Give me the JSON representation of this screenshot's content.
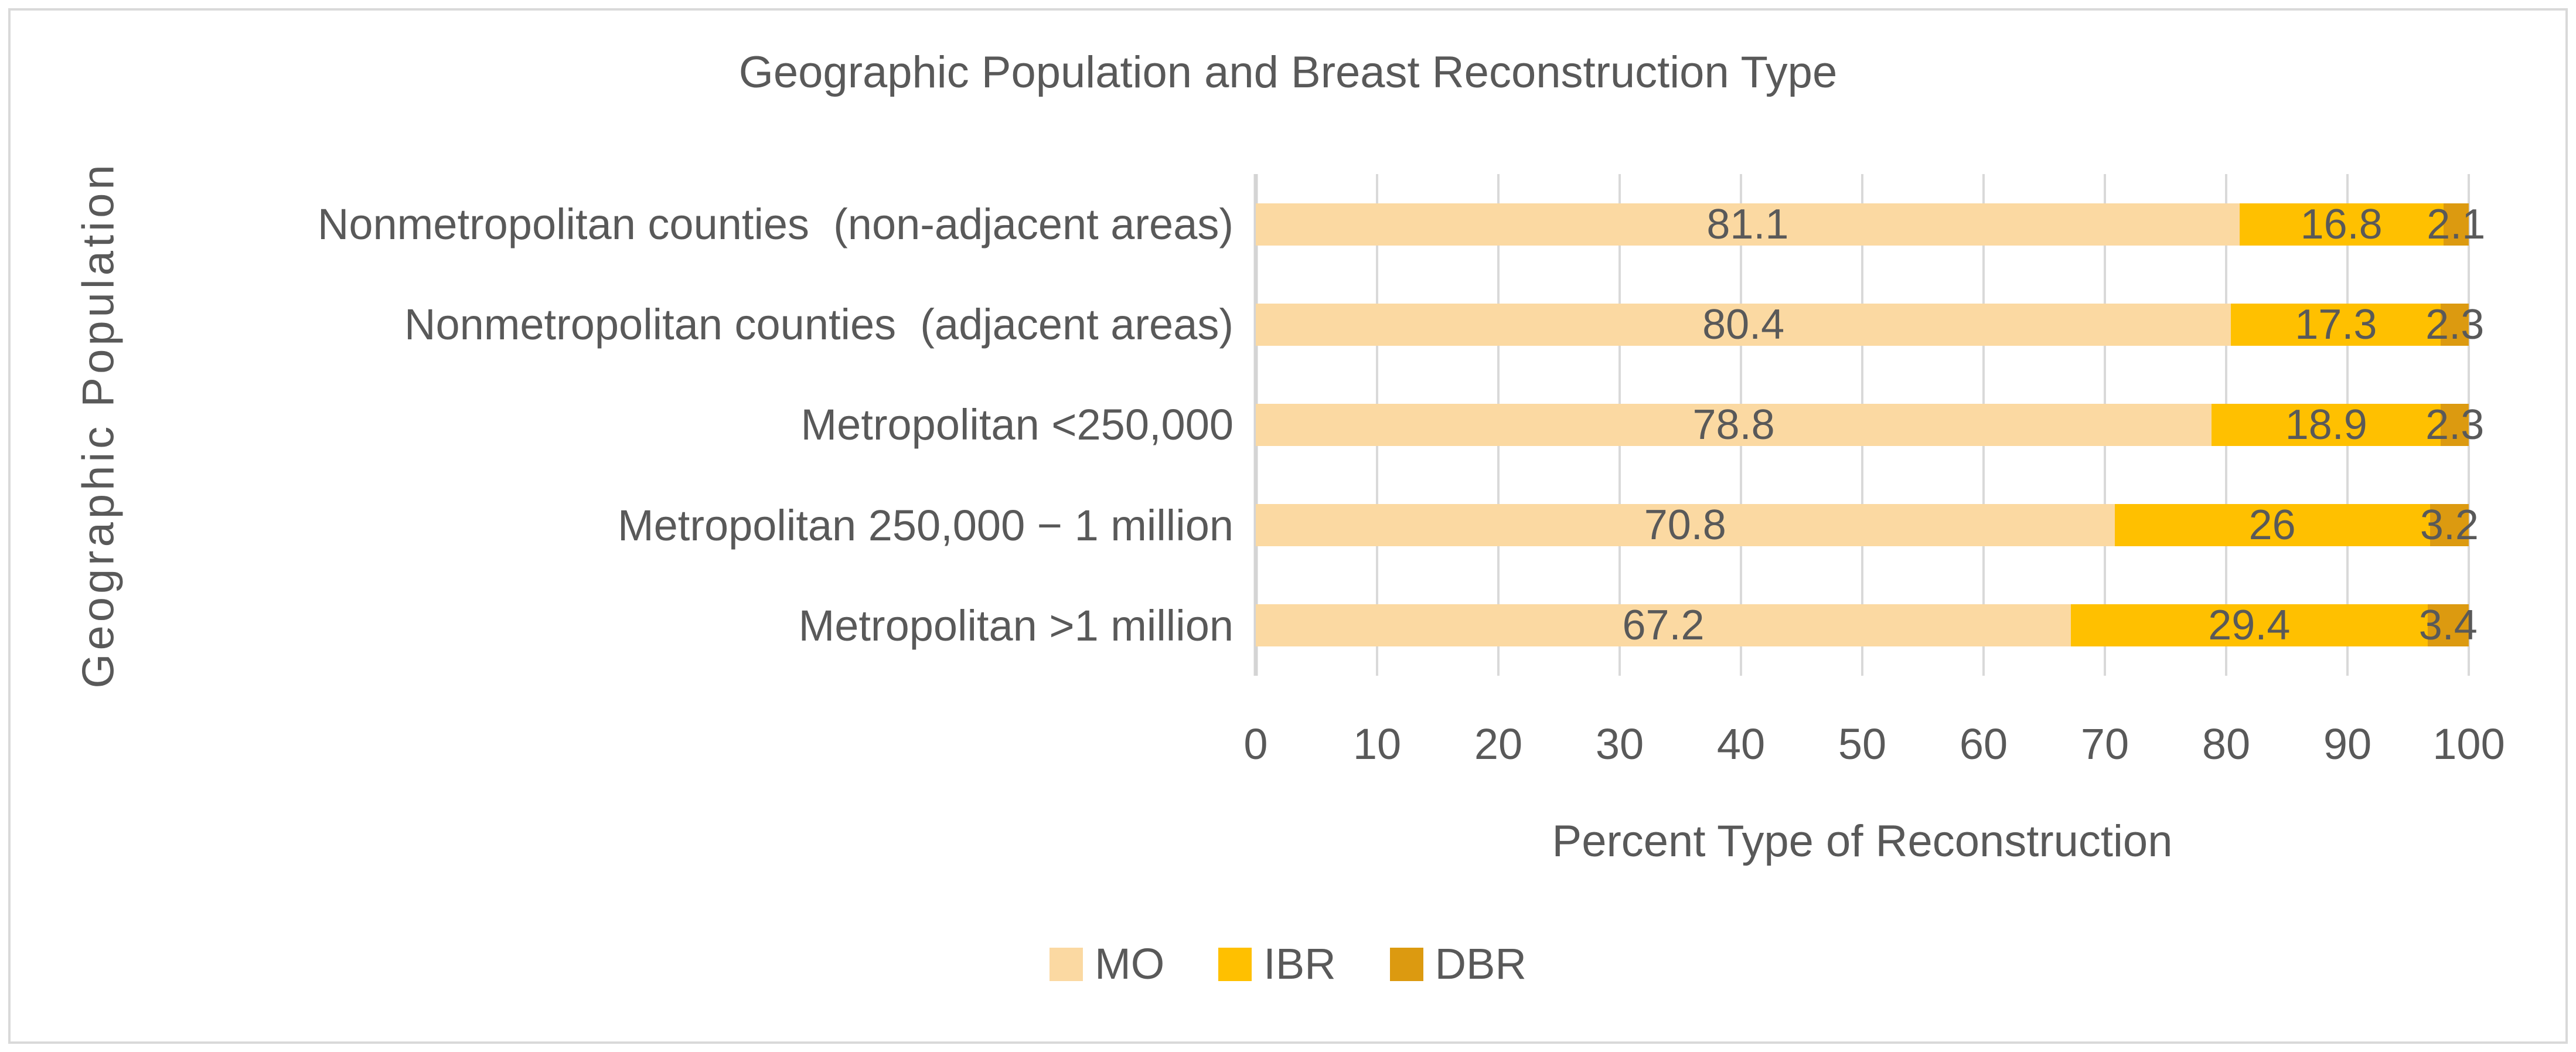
{
  "chart": {
    "title": "Geographic Population and Breast Reconstruction Type",
    "y_axis_title": "Geographic Population",
    "x_axis_title": "Percent Type of Reconstruction",
    "text_color": "#595959",
    "gridline_color": "#D9D9D9",
    "frame_border_color": "#D9D9D9",
    "background_color": "#FFFFFF"
  },
  "chart_data": {
    "type": "bar",
    "orientation": "horizontal",
    "stacked": true,
    "grid": true,
    "legend_position": "bottom",
    "title": "Geographic Population and Breast Reconstruction Type",
    "xlabel": "Percent Type of Reconstruction",
    "ylabel": "Geographic Population",
    "xlim": [
      0,
      100
    ],
    "x_ticks": [
      0,
      10,
      20,
      30,
      40,
      50,
      60,
      70,
      80,
      90,
      100
    ],
    "categories": [
      "Nonmetropolitan counties  (non-adjacent areas)",
      "Nonmetropolitan counties  (adjacent areas)",
      "Metropolitan <250,000",
      "Metropolitan 250,000 − 1 million",
      "Metropolitan >1 million"
    ],
    "series": [
      {
        "name": "MO",
        "color": "#FBD9A2",
        "values": [
          81.1,
          80.4,
          78.8,
          70.8,
          67.2
        ],
        "labels": [
          "81.1",
          "80.4",
          "78.8",
          "70.8",
          "67.2"
        ]
      },
      {
        "name": "IBR",
        "color": "#FFC000",
        "values": [
          16.8,
          17.3,
          18.9,
          26,
          29.4
        ],
        "labels": [
          "16.8",
          "17.3",
          "18.9",
          "26",
          "29.4"
        ]
      },
      {
        "name": "DBR",
        "color": "#DC9A10",
        "values": [
          2.1,
          2.3,
          2.3,
          3.2,
          3.4
        ],
        "labels": [
          "2.1",
          "2.3",
          "2.3",
          "3.2",
          "3.4"
        ]
      }
    ]
  }
}
